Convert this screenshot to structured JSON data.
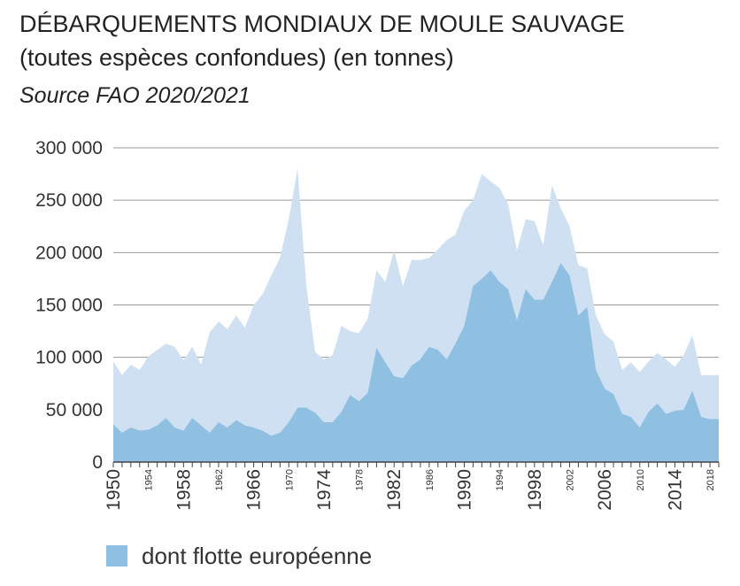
{
  "header": {
    "title": "DÉBARQUEMENTS MONDIAUX DE MOULE SAUVAGE",
    "subtitle": "(toutes espèces confondues) (en tonnes)",
    "source": "Source FAO 2020/2021"
  },
  "legend": {
    "label": "dont flotte européenne"
  },
  "colors": {
    "total": "#cfe0f2",
    "europe": "#8fbfe1",
    "grid": "#9a9a9a",
    "axis": "#444444"
  },
  "chart_data": {
    "type": "area",
    "title": "DÉBARQUEMENTS MONDIAUX DE MOULE SAUVAGE",
    "xlim": [
      1950,
      2019
    ],
    "ylim": [
      0,
      300000
    ],
    "yticks": [
      0,
      50000,
      100000,
      150000,
      200000,
      250000,
      300000
    ],
    "ytick_labels": [
      "0",
      "50 000",
      "100 000",
      "150 000",
      "200 000",
      "250 000",
      "300 000"
    ],
    "xticks_major": [
      1950,
      1958,
      1966,
      1974,
      1982,
      1990,
      1998,
      2006,
      2014
    ],
    "xticks_minor": [
      1954,
      1962,
      1970,
      1978,
      1986,
      1994,
      2002,
      2010,
      2018
    ],
    "grid": true,
    "legend_position": "bottom-left",
    "x": [
      1950,
      1951,
      1952,
      1953,
      1954,
      1955,
      1956,
      1957,
      1958,
      1959,
      1960,
      1961,
      1962,
      1963,
      1964,
      1965,
      1966,
      1967,
      1968,
      1969,
      1970,
      1971,
      1972,
      1973,
      1974,
      1975,
      1976,
      1977,
      1978,
      1979,
      1980,
      1981,
      1982,
      1983,
      1984,
      1985,
      1986,
      1987,
      1988,
      1989,
      1990,
      1991,
      1992,
      1993,
      1994,
      1995,
      1996,
      1997,
      1998,
      1999,
      2000,
      2001,
      2002,
      2003,
      2004,
      2005,
      2006,
      2007,
      2008,
      2009,
      2010,
      2011,
      2012,
      2013,
      2014,
      2015,
      2016,
      2017,
      2018,
      2019
    ],
    "series": [
      {
        "values": [
          96000,
          83000,
          93000,
          88000,
          101000,
          107000,
          113000,
          110000,
          97000,
          110000,
          93000,
          124000,
          134000,
          127000,
          140000,
          128000,
          150000,
          160000,
          178000,
          195000,
          232000,
          280000,
          168000,
          105000,
          98000,
          102000,
          130000,
          125000,
          123000,
          137000,
          183000,
          172000,
          202000,
          168000,
          193000,
          193000,
          195000,
          203000,
          212000,
          217000,
          240000,
          250000,
          275000,
          268000,
          262000,
          246000,
          202000,
          232000,
          230000,
          207000,
          264000,
          242000,
          225000,
          188000,
          185000,
          140000,
          122000,
          115000,
          88000,
          95000,
          86000,
          96000,
          104000,
          98000,
          91000,
          102000,
          121000,
          83000,
          83000,
          83000
        ]
      },
      {
        "name": "dont flotte européenne",
        "values": [
          36000,
          28000,
          33000,
          30000,
          31000,
          35000,
          42000,
          33000,
          30000,
          42000,
          35000,
          28000,
          38000,
          33000,
          40000,
          35000,
          33000,
          30000,
          25000,
          28000,
          38000,
          52000,
          52000,
          47000,
          38000,
          38000,
          48000,
          64000,
          58000,
          66000,
          109000,
          95000,
          82000,
          80000,
          92000,
          98000,
          110000,
          107000,
          98000,
          113000,
          130000,
          168000,
          175000,
          183000,
          172000,
          165000,
          135000,
          165000,
          155000,
          155000,
          172000,
          190000,
          178000,
          140000,
          148000,
          88000,
          70000,
          65000,
          46000,
          43000,
          33000,
          48000,
          56000,
          46000,
          49000,
          50000,
          68000,
          43000,
          41000,
          41000
        ]
      }
    ]
  }
}
